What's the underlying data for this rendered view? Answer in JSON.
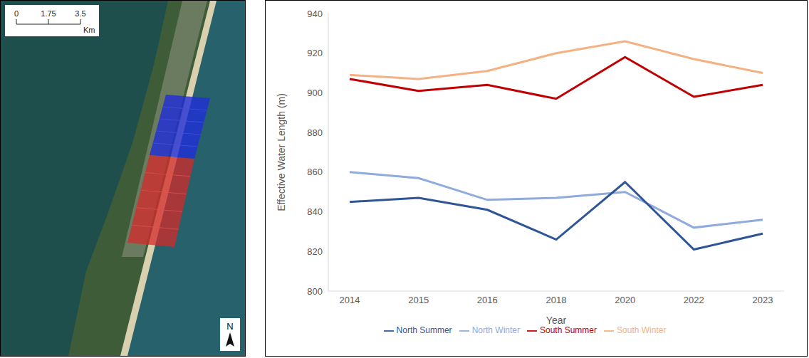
{
  "chart_data": {
    "type": "line",
    "x_label": "Year",
    "y_label": "Effective Water Length (m)",
    "categories": [
      "2014",
      "2015",
      "2016",
      "2018",
      "2020",
      "2022",
      "2023"
    ],
    "series": [
      {
        "name": "South Winter",
        "color": "#f4b183",
        "values": [
          909,
          907,
          911,
          920,
          926,
          917,
          910
        ]
      },
      {
        "name": "North Winter",
        "color": "#8faadc",
        "values": [
          860,
          857,
          846,
          847,
          850,
          832,
          836
        ]
      },
      {
        "name": "South Summer",
        "color": "#c00000",
        "values": [
          907,
          901,
          904,
          897,
          918,
          898,
          904
        ]
      },
      {
        "name": "North Summer",
        "color": "#2f5597",
        "values": [
          845,
          847,
          841,
          826,
          855,
          821,
          829
        ]
      }
    ],
    "ylim": [
      800,
      940
    ],
    "yticks": [
      800,
      820,
      840,
      860,
      880,
      900,
      920,
      940
    ],
    "grid": false,
    "legend": "bottom"
  },
  "map": {
    "scale_bar": {
      "labels": [
        0,
        1.75,
        3.5
      ],
      "unit": "Km"
    },
    "north_label": "N"
  }
}
